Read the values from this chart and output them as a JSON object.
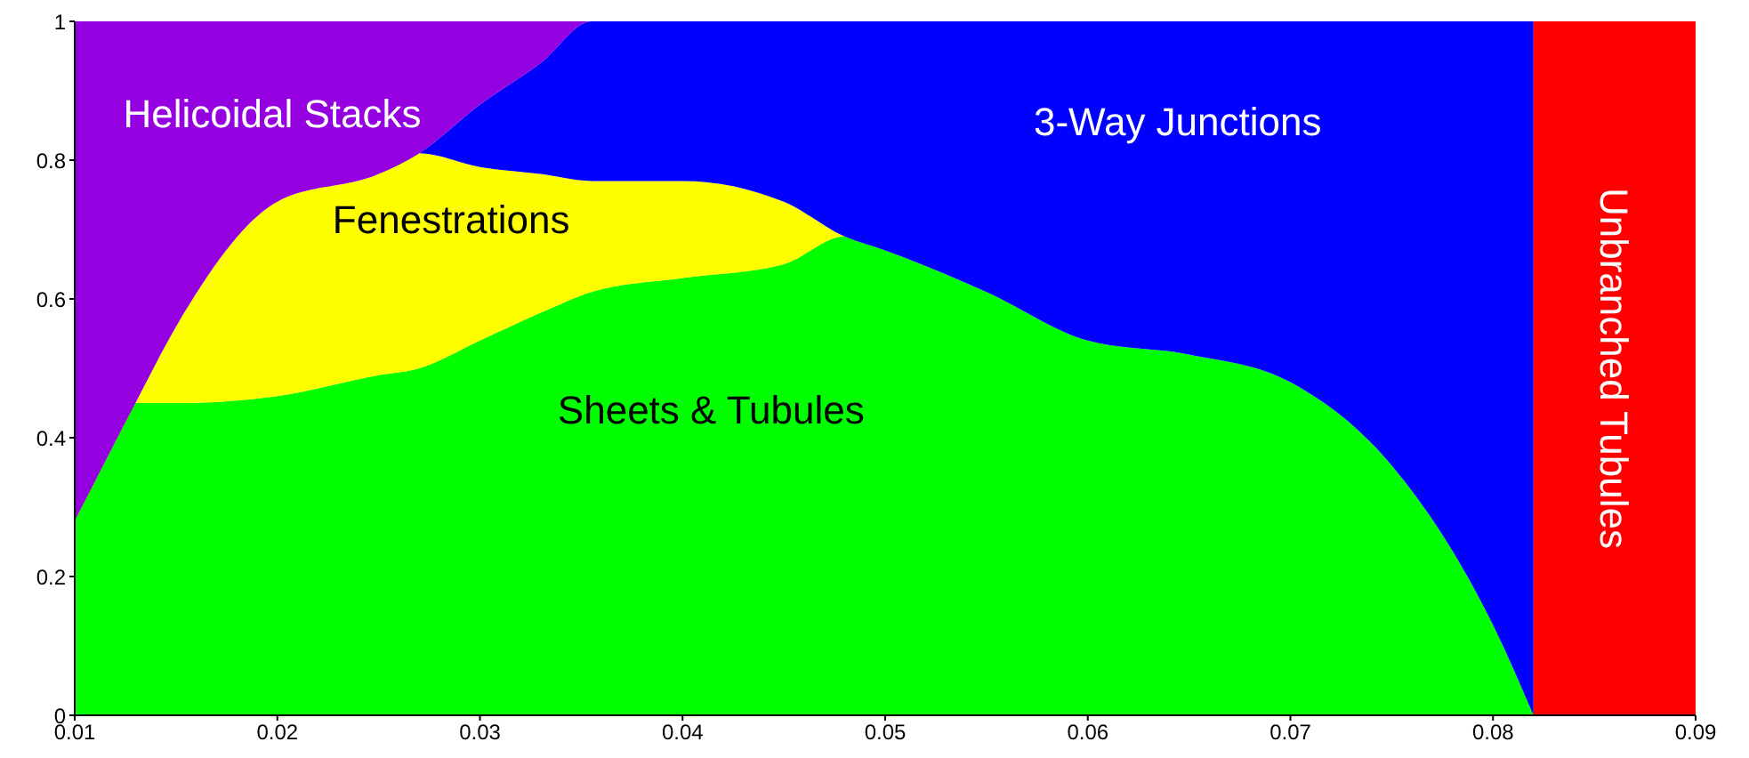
{
  "chart_data": {
    "type": "area",
    "stacked": true,
    "x": [
      0.01,
      0.013,
      0.015,
      0.02,
      0.025,
      0.027,
      0.03,
      0.033,
      0.0355,
      0.04,
      0.045,
      0.048,
      0.05,
      0.055,
      0.06,
      0.065,
      0.07,
      0.075,
      0.08,
      0.082
    ],
    "series": [
      {
        "name": "Sheets & Tubules",
        "color": "#00ff00",
        "values": [
          0.28,
          0.45,
          0.45,
          0.46,
          0.49,
          0.5,
          0.54,
          0.58,
          0.61,
          0.63,
          0.65,
          0.69,
          0.67,
          0.61,
          0.54,
          0.52,
          0.48,
          0.36,
          0.13,
          0
        ]
      },
      {
        "name": "Fenestrations",
        "color": "#ffff00",
        "values": [
          0,
          0,
          0.11,
          0.28,
          0.29,
          0.31,
          0.25,
          0.2,
          0.16,
          0.14,
          0.09,
          0,
          0,
          0,
          0,
          0,
          0,
          0,
          0,
          0
        ]
      },
      {
        "name": "3-Way Junctions",
        "color": "#0000ff",
        "values": [
          0,
          0,
          0,
          0,
          0,
          0,
          0.09,
          0.16,
          0.23,
          0.23,
          0.26,
          0.31,
          0.33,
          0.39,
          0.46,
          0.48,
          0.52,
          0.64,
          0.87,
          1
        ]
      },
      {
        "name": "Helicoidal Stacks",
        "color": "#9400e0",
        "values": [
          0.72,
          0.55,
          0.44,
          0.26,
          0.22,
          0.19,
          0.12,
          0.06,
          0,
          0,
          0,
          0,
          0,
          0,
          0,
          0,
          0,
          0,
          0,
          0
        ]
      }
    ],
    "bands": [
      {
        "axis": "x",
        "from": 0.082,
        "to": 0.09,
        "label": "Unbranched Tubules",
        "color": "#ff0000"
      }
    ],
    "xlim": [
      0.01,
      0.09
    ],
    "xticks": [
      0.01,
      0.02,
      0.03,
      0.04,
      0.05,
      0.06,
      0.07,
      0.08,
      0.09
    ],
    "ylim": [
      0,
      1
    ],
    "yticks": [
      0,
      0.2,
      0.4,
      0.6,
      0.8,
      1
    ],
    "grid": false
  }
}
